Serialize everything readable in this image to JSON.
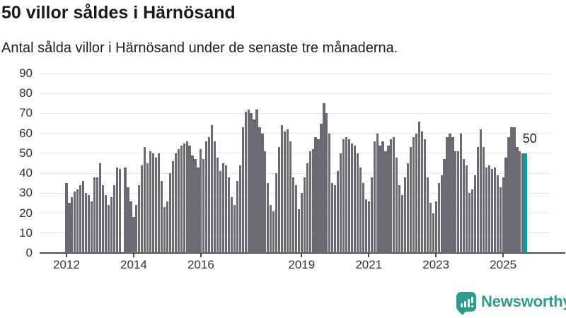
{
  "header": {
    "title": "50 villor såldes i Härnösand",
    "subtitle": "Antal sålda villor i Härnösand under de senaste tre månaderna."
  },
  "chart_data": {
    "type": "bar",
    "title": "50 villor såldes i Härnösand",
    "subtitle": "Antal sålda villor i Härnösand under de senaste tre månaderna.",
    "x_start": "2012-01",
    "x_end": "2025-09",
    "frequency": "monthly",
    "ylim": [
      0,
      90
    ],
    "yticks": [
      0,
      10,
      20,
      30,
      40,
      50,
      60,
      70,
      80,
      90
    ],
    "xtick_labels": [
      "2012",
      "2014",
      "2016",
      "2019",
      "2021",
      "2023",
      "2025"
    ],
    "xtick_month_index": [
      0,
      24,
      48,
      84,
      108,
      132,
      156
    ],
    "grid": true,
    "bar_color": "#6a6a72",
    "highlight_color": "#17989f",
    "highlight_index": 164,
    "highlight_label": "50",
    "values": [
      35,
      25,
      28,
      31,
      32,
      34,
      36,
      30,
      29,
      26,
      38,
      38,
      45,
      34,
      29,
      24,
      28,
      34,
      43,
      42,
      0,
      43,
      33,
      26,
      18,
      24,
      34,
      44,
      53,
      45,
      51,
      50,
      48,
      50,
      36,
      23,
      26,
      40,
      46,
      50,
      52,
      54,
      55,
      56,
      54,
      49,
      47,
      43,
      52,
      47,
      56,
      58,
      64,
      56,
      48,
      41,
      45,
      44,
      38,
      28,
      24,
      36,
      44,
      63,
      71,
      72,
      70,
      67,
      72,
      63,
      60,
      51,
      35,
      24,
      21,
      40,
      53,
      64,
      61,
      62,
      56,
      38,
      34,
      22,
      30,
      38,
      45,
      51,
      52,
      58,
      57,
      65,
      75,
      70,
      60,
      35,
      34,
      41,
      50,
      57,
      58,
      57,
      55,
      54,
      50,
      43,
      35,
      27,
      26,
      38,
      56,
      60,
      54,
      56,
      51,
      54,
      57,
      58,
      48,
      34,
      29,
      38,
      45,
      53,
      58,
      60,
      66,
      61,
      57,
      38,
      25,
      20,
      26,
      35,
      39,
      47,
      58,
      60,
      58,
      51,
      51,
      60,
      47,
      44,
      30,
      32,
      39,
      53,
      62,
      53,
      43,
      44,
      42,
      43,
      39,
      33,
      38,
      48,
      58,
      63,
      63,
      53,
      51,
      50,
      50
    ]
  },
  "brand": {
    "name": "Newsworthy",
    "color": "#2e9c8d"
  }
}
